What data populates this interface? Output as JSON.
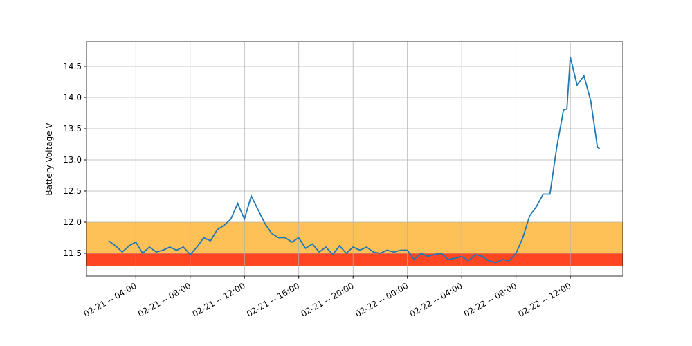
{
  "chart_data": {
    "type": "line",
    "y_label": "Battery Voltage V",
    "x": [
      "02-21 02:00",
      "02-21 02:30",
      "02-21 03:00",
      "02-21 03:30",
      "02-21 04:00",
      "02-21 04:30",
      "02-21 05:00",
      "02-21 05:30",
      "02-21 06:00",
      "02-21 06:30",
      "02-21 07:00",
      "02-21 07:30",
      "02-21 08:00",
      "02-21 08:30",
      "02-21 09:00",
      "02-21 09:30",
      "02-21 10:00",
      "02-21 10:30",
      "02-21 11:00",
      "02-21 11:30",
      "02-21 12:00",
      "02-21 12:30",
      "02-21 13:00",
      "02-21 13:30",
      "02-21 14:00",
      "02-21 14:30",
      "02-21 15:00",
      "02-21 15:30",
      "02-21 16:00",
      "02-21 16:30",
      "02-21 17:00",
      "02-21 17:30",
      "02-21 18:00",
      "02-21 18:30",
      "02-21 19:00",
      "02-21 19:30",
      "02-21 20:00",
      "02-21 20:30",
      "02-21 21:00",
      "02-21 21:30",
      "02-21 22:00",
      "02-21 22:30",
      "02-21 23:00",
      "02-21 23:30",
      "02-22 00:00",
      "02-22 00:30",
      "02-22 01:00",
      "02-22 01:30",
      "02-22 02:00",
      "02-22 02:30",
      "02-22 03:00",
      "02-22 03:30",
      "02-22 04:00",
      "02-22 04:30",
      "02-22 05:00",
      "02-22 05:30",
      "02-22 06:00",
      "02-22 06:30",
      "02-22 07:00",
      "02-22 07:30",
      "02-22 08:00",
      "02-22 08:30",
      "02-22 09:00",
      "02-22 09:30",
      "02-22 10:00",
      "02-22 10:30",
      "02-22 11:00",
      "02-22 11:30",
      "02-22 11:45",
      "02-22 12:00",
      "02-22 12:30",
      "02-22 13:00",
      "02-22 13:30",
      "02-22 14:00",
      "02-22 14:10"
    ],
    "series": [
      {
        "name": "Battery Voltage",
        "color": "#1f77b4",
        "values": [
          11.7,
          11.62,
          11.52,
          11.62,
          11.68,
          11.5,
          11.6,
          11.52,
          11.55,
          11.6,
          11.55,
          11.6,
          11.48,
          11.6,
          11.75,
          11.7,
          11.88,
          11.95,
          12.05,
          12.3,
          12.05,
          12.42,
          12.2,
          11.98,
          11.82,
          11.75,
          11.75,
          11.68,
          11.75,
          11.58,
          11.65,
          11.52,
          11.6,
          11.48,
          11.62,
          11.5,
          11.6,
          11.55,
          11.6,
          11.52,
          11.5,
          11.55,
          11.52,
          11.55,
          11.55,
          11.4,
          11.5,
          11.45,
          11.48,
          11.5,
          11.4,
          11.42,
          11.45,
          11.38,
          11.48,
          11.45,
          11.38,
          11.35,
          11.4,
          11.38,
          11.5,
          11.75,
          12.1,
          12.25,
          12.45,
          12.45,
          13.2,
          13.8,
          13.82,
          14.65,
          14.2,
          14.35,
          13.95,
          13.2,
          13.18
        ]
      }
    ],
    "xlim": [
      "02-21 00:22",
      "02-22 15:52"
    ],
    "xticks": [
      {
        "value": "02-21 04:00",
        "label": "02-21 -- 04:00"
      },
      {
        "value": "02-21 08:00",
        "label": "02-21 -- 08:00"
      },
      {
        "value": "02-21 12:00",
        "label": "02-21 -- 12:00"
      },
      {
        "value": "02-21 16:00",
        "label": "02-21 -- 16:00"
      },
      {
        "value": "02-21 20:00",
        "label": "02-21 -- 20:00"
      },
      {
        "value": "02-22 00:00",
        "label": "02-22 -- 00:00"
      },
      {
        "value": "02-22 04:00",
        "label": "02-22 -- 04:00"
      },
      {
        "value": "02-22 08:00",
        "label": "02-22 -- 08:00"
      },
      {
        "value": "02-22 12:00",
        "label": "02-22 -- 12:00"
      }
    ],
    "ylim": [
      11.133,
      14.9
    ],
    "yticks": [
      11.5,
      {
        "value": 12,
        "label": "12.0"
      },
      12.5,
      {
        "value": 13,
        "label": "13.0"
      },
      13.5,
      {
        "value": 14,
        "label": "14.0"
      },
      14.5
    ],
    "bands": [
      {
        "from": 11.5,
        "to": 12.0,
        "color": "#fec157"
      },
      {
        "from": 11.3,
        "to": 11.5,
        "color": "#ff4621"
      }
    ],
    "grid": true
  }
}
